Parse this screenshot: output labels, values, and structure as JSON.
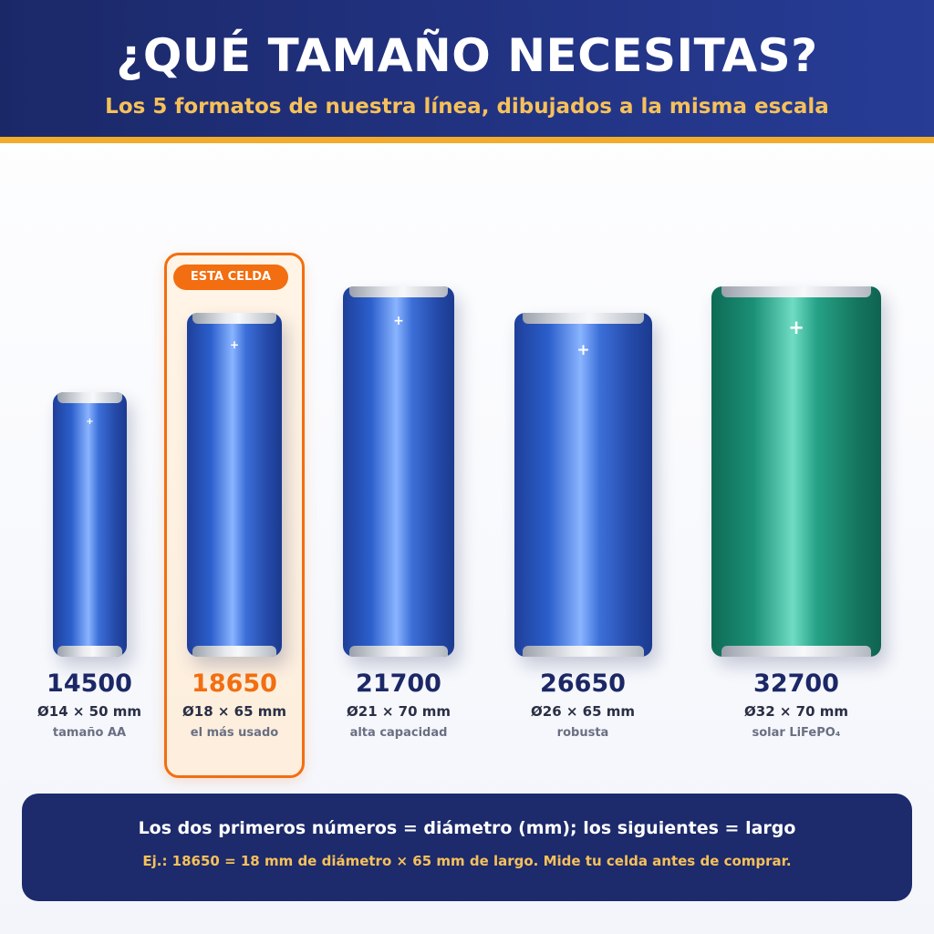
{
  "header": {
    "title": "¿QUÉ TAMAÑO NECESITAS?",
    "subtitle": "Los 5 formatos de nuestra línea, dibujados a la misma escala",
    "accent_color": "#f1ac2c"
  },
  "highlight": {
    "tag": "ESTA CELDA",
    "color": "#f26e10"
  },
  "cells": [
    {
      "code": "14500",
      "dims": "Ø14 × 50 mm",
      "desc": "tamaño AA",
      "diameter_mm": 14,
      "length_mm": 50,
      "color": "blue",
      "highlighted": false
    },
    {
      "code": "18650",
      "dims": "Ø18 × 65 mm",
      "desc": "el más usado",
      "diameter_mm": 18,
      "length_mm": 65,
      "color": "blue",
      "highlighted": true
    },
    {
      "code": "21700",
      "dims": "Ø21 × 70 mm",
      "desc": "alta capacidad",
      "diameter_mm": 21,
      "length_mm": 70,
      "color": "blue",
      "highlighted": false
    },
    {
      "code": "26650",
      "dims": "Ø26 × 65 mm",
      "desc": "robusta",
      "diameter_mm": 26,
      "length_mm": 65,
      "color": "blue",
      "highlighted": false
    },
    {
      "code": "32700",
      "dims": "Ø32 × 70 mm",
      "desc": "solar LiFePO₄",
      "diameter_mm": 32,
      "length_mm": 70,
      "color": "green",
      "highlighted": false
    }
  ],
  "battery_terminal_symbol": "+",
  "footer": {
    "main": "Los dos primeros números = diámetro (mm); los siguientes = largo",
    "example": "Ej.: 18650 = 18 mm de diámetro × 65 mm de largo. Mide tu celda antes de comprar."
  }
}
